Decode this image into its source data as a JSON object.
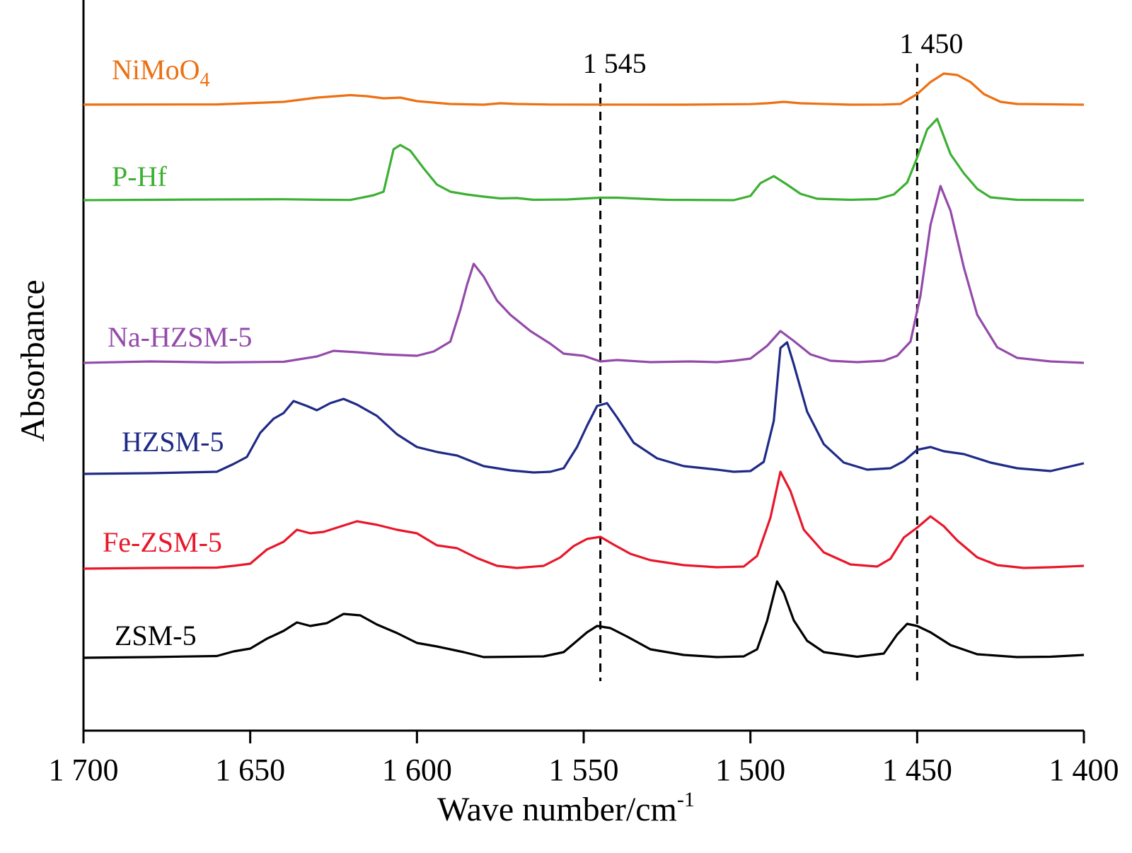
{
  "chart_data": {
    "type": "line",
    "title": "",
    "xlabel": "Wave number/cm",
    "xlabel_superscript": "-1",
    "ylabel": "Absorbance",
    "xlim": [
      1700,
      1400
    ],
    "x_reversed": true,
    "y_ticks_shown": false,
    "grid": false,
    "xticks": [
      {
        "value": 1700,
        "label": "1 700"
      },
      {
        "value": 1650,
        "label": "1 650"
      },
      {
        "value": 1600,
        "label": "1 600"
      },
      {
        "value": 1550,
        "label": "1 550"
      },
      {
        "value": 1500,
        "label": "1 500"
      },
      {
        "value": 1450,
        "label": "1 450"
      },
      {
        "value": 1400,
        "label": "1 400"
      }
    ],
    "reference_lines": [
      {
        "x": 1545,
        "label": "1 545",
        "style": "dashed"
      },
      {
        "x": 1450,
        "label": "1 450",
        "style": "dashed"
      }
    ],
    "series": [
      {
        "name": "NiMoO",
        "name_subscript": "4",
        "color": "#ed7012",
        "points": [
          [
            1700,
            0.1
          ],
          [
            1660,
            0.4
          ],
          [
            1640,
            4
          ],
          [
            1630,
            10
          ],
          [
            1620,
            13.5
          ],
          [
            1615,
            12
          ],
          [
            1610,
            9
          ],
          [
            1605,
            10
          ],
          [
            1600,
            5
          ],
          [
            1590,
            1
          ],
          [
            1580,
            0
          ],
          [
            1575,
            2
          ],
          [
            1570,
            1
          ],
          [
            1560,
            0.2
          ],
          [
            1520,
            0
          ],
          [
            1500,
            0.8
          ],
          [
            1495,
            2
          ],
          [
            1490,
            4
          ],
          [
            1485,
            2
          ],
          [
            1470,
            0
          ],
          [
            1460,
            0.2
          ],
          [
            1455,
            1
          ],
          [
            1450,
            15
          ],
          [
            1446,
            32
          ],
          [
            1442,
            44
          ],
          [
            1438,
            42
          ],
          [
            1434,
            32
          ],
          [
            1430,
            15
          ],
          [
            1425,
            4
          ],
          [
            1420,
            1
          ],
          [
            1400,
            0
          ]
        ]
      },
      {
        "name": "P-Hf",
        "name_subscript": "",
        "color": "#3db033",
        "points": [
          [
            1700,
            0
          ],
          [
            1680,
            0.5
          ],
          [
            1660,
            1
          ],
          [
            1640,
            1.3
          ],
          [
            1630,
            0.6
          ],
          [
            1620,
            0.3
          ],
          [
            1613,
            7
          ],
          [
            1610,
            12
          ],
          [
            1607,
            72
          ],
          [
            1605,
            78
          ],
          [
            1602,
            70
          ],
          [
            1598,
            45
          ],
          [
            1594,
            22
          ],
          [
            1590,
            12
          ],
          [
            1585,
            8
          ],
          [
            1580,
            5
          ],
          [
            1575,
            2.5
          ],
          [
            1570,
            3
          ],
          [
            1565,
            0.5
          ],
          [
            1555,
            1
          ],
          [
            1545,
            3.5
          ],
          [
            1540,
            3.5
          ],
          [
            1525,
            0.5
          ],
          [
            1505,
            0
          ],
          [
            1500,
            6
          ],
          [
            1497,
            24
          ],
          [
            1493,
            34
          ],
          [
            1489,
            22
          ],
          [
            1485,
            9
          ],
          [
            1480,
            2
          ],
          [
            1470,
            0.5
          ],
          [
            1462,
            1.5
          ],
          [
            1457,
            8
          ],
          [
            1453,
            25
          ],
          [
            1450,
            60
          ],
          [
            1447,
            100
          ],
          [
            1444,
            115
          ],
          [
            1440,
            65
          ],
          [
            1436,
            38
          ],
          [
            1432,
            16
          ],
          [
            1428,
            4
          ],
          [
            1420,
            0.5
          ],
          [
            1400,
            0
          ]
        ]
      },
      {
        "name": "Na-HZSM-5",
        "name_subscript": "",
        "color": "#934aa9",
        "points": [
          [
            1700,
            0
          ],
          [
            1680,
            2
          ],
          [
            1660,
            0.6
          ],
          [
            1640,
            1.5
          ],
          [
            1630,
            9
          ],
          [
            1625,
            17
          ],
          [
            1618,
            15
          ],
          [
            1610,
            12
          ],
          [
            1600,
            10
          ],
          [
            1595,
            16
          ],
          [
            1590,
            30
          ],
          [
            1587,
            75
          ],
          [
            1585,
            110
          ],
          [
            1583,
            140
          ],
          [
            1580,
            122
          ],
          [
            1576,
            88
          ],
          [
            1572,
            68
          ],
          [
            1566,
            45
          ],
          [
            1560,
            27
          ],
          [
            1556,
            13
          ],
          [
            1550,
            10
          ],
          [
            1545,
            2
          ],
          [
            1540,
            4
          ],
          [
            1530,
            1
          ],
          [
            1518,
            2
          ],
          [
            1510,
            1
          ],
          [
            1505,
            3
          ],
          [
            1500,
            6
          ],
          [
            1495,
            24
          ],
          [
            1491,
            45
          ],
          [
            1487,
            31
          ],
          [
            1482,
            12
          ],
          [
            1476,
            3
          ],
          [
            1468,
            1
          ],
          [
            1460,
            3
          ],
          [
            1456,
            10
          ],
          [
            1452,
            30
          ],
          [
            1449,
            95
          ],
          [
            1446,
            195
          ],
          [
            1443,
            250
          ],
          [
            1440,
            215
          ],
          [
            1436,
            135
          ],
          [
            1432,
            68
          ],
          [
            1426,
            22
          ],
          [
            1420,
            7
          ],
          [
            1410,
            2
          ],
          [
            1400,
            0
          ]
        ]
      },
      {
        "name": "HZSM-5",
        "name_subscript": "",
        "color": "#1f2a87",
        "points": [
          [
            1700,
            0
          ],
          [
            1680,
            1
          ],
          [
            1660,
            3
          ],
          [
            1655,
            14
          ],
          [
            1651,
            24
          ],
          [
            1647,
            58
          ],
          [
            1643,
            78
          ],
          [
            1640,
            86
          ],
          [
            1637,
            103
          ],
          [
            1633,
            96
          ],
          [
            1630,
            90
          ],
          [
            1626,
            100
          ],
          [
            1622,
            106
          ],
          [
            1618,
            98
          ],
          [
            1612,
            82
          ],
          [
            1606,
            56
          ],
          [
            1600,
            38
          ],
          [
            1594,
            31
          ],
          [
            1588,
            26
          ],
          [
            1580,
            11
          ],
          [
            1572,
            5
          ],
          [
            1565,
            2
          ],
          [
            1560,
            3
          ],
          [
            1556,
            8
          ],
          [
            1552,
            38
          ],
          [
            1549,
            68
          ],
          [
            1546,
            96
          ],
          [
            1543,
            100
          ],
          [
            1540,
            80
          ],
          [
            1535,
            44
          ],
          [
            1528,
            22
          ],
          [
            1520,
            11
          ],
          [
            1510,
            6
          ],
          [
            1505,
            3
          ],
          [
            1500,
            4
          ],
          [
            1496,
            17
          ],
          [
            1493,
            75
          ],
          [
            1491,
            178
          ],
          [
            1489,
            186
          ],
          [
            1487,
            155
          ],
          [
            1483,
            88
          ],
          [
            1478,
            42
          ],
          [
            1472,
            16
          ],
          [
            1465,
            6
          ],
          [
            1458,
            8
          ],
          [
            1454,
            18
          ],
          [
            1450,
            34
          ],
          [
            1446,
            38
          ],
          [
            1442,
            32
          ],
          [
            1436,
            28
          ],
          [
            1428,
            16
          ],
          [
            1420,
            8
          ],
          [
            1410,
            4
          ],
          [
            1400,
            15
          ]
        ]
      },
      {
        "name": "Fe-ZSM-5",
        "name_subscript": "",
        "color": "#e8172a",
        "points": [
          [
            1700,
            0
          ],
          [
            1680,
            1
          ],
          [
            1660,
            1.5
          ],
          [
            1655,
            4
          ],
          [
            1650,
            7
          ],
          [
            1645,
            27
          ],
          [
            1640,
            38
          ],
          [
            1636,
            55
          ],
          [
            1632,
            50
          ],
          [
            1628,
            52
          ],
          [
            1624,
            58
          ],
          [
            1618,
            67
          ],
          [
            1612,
            62
          ],
          [
            1606,
            55
          ],
          [
            1600,
            50
          ],
          [
            1594,
            33
          ],
          [
            1588,
            29
          ],
          [
            1582,
            15
          ],
          [
            1576,
            4
          ],
          [
            1570,
            1
          ],
          [
            1562,
            4
          ],
          [
            1557,
            16
          ],
          [
            1553,
            32
          ],
          [
            1549,
            42
          ],
          [
            1545,
            45
          ],
          [
            1541,
            34
          ],
          [
            1536,
            21
          ],
          [
            1530,
            12
          ],
          [
            1520,
            5
          ],
          [
            1510,
            2
          ],
          [
            1502,
            3
          ],
          [
            1498,
            18
          ],
          [
            1494,
            72
          ],
          [
            1491,
            137
          ],
          [
            1488,
            110
          ],
          [
            1484,
            55
          ],
          [
            1478,
            23
          ],
          [
            1470,
            6
          ],
          [
            1462,
            3
          ],
          [
            1458,
            14
          ],
          [
            1454,
            44
          ],
          [
            1450,
            58
          ],
          [
            1446,
            74
          ],
          [
            1442,
            60
          ],
          [
            1438,
            40
          ],
          [
            1432,
            16
          ],
          [
            1426,
            5
          ],
          [
            1418,
            1
          ],
          [
            1410,
            2
          ],
          [
            1400,
            4
          ]
        ]
      },
      {
        "name": "ZSM-5",
        "name_subscript": "",
        "color": "#000000",
        "points": [
          [
            1700,
            0
          ],
          [
            1680,
            1
          ],
          [
            1660,
            2.5
          ],
          [
            1655,
            9
          ],
          [
            1650,
            13
          ],
          [
            1645,
            27
          ],
          [
            1640,
            38
          ],
          [
            1636,
            50
          ],
          [
            1632,
            45
          ],
          [
            1627,
            49
          ],
          [
            1622,
            62
          ],
          [
            1617,
            60
          ],
          [
            1612,
            47
          ],
          [
            1606,
            35
          ],
          [
            1600,
            21
          ],
          [
            1594,
            16
          ],
          [
            1586,
            8
          ],
          [
            1580,
            1
          ],
          [
            1570,
            1.5
          ],
          [
            1562,
            2
          ],
          [
            1556,
            8
          ],
          [
            1552,
            24
          ],
          [
            1549,
            36
          ],
          [
            1546,
            45
          ],
          [
            1542,
            42
          ],
          [
            1537,
            30
          ],
          [
            1530,
            12
          ],
          [
            1520,
            4
          ],
          [
            1510,
            1
          ],
          [
            1502,
            2
          ],
          [
            1498,
            12
          ],
          [
            1495,
            52
          ],
          [
            1492,
            108
          ],
          [
            1490,
            92
          ],
          [
            1487,
            53
          ],
          [
            1483,
            24
          ],
          [
            1478,
            8
          ],
          [
            1468,
            1.5
          ],
          [
            1460,
            6
          ],
          [
            1456,
            33
          ],
          [
            1453,
            48
          ],
          [
            1450,
            45
          ],
          [
            1446,
            36
          ],
          [
            1440,
            18
          ],
          [
            1432,
            5
          ],
          [
            1420,
            1
          ],
          [
            1410,
            1.5
          ],
          [
            1400,
            4
          ]
        ]
      }
    ]
  }
}
